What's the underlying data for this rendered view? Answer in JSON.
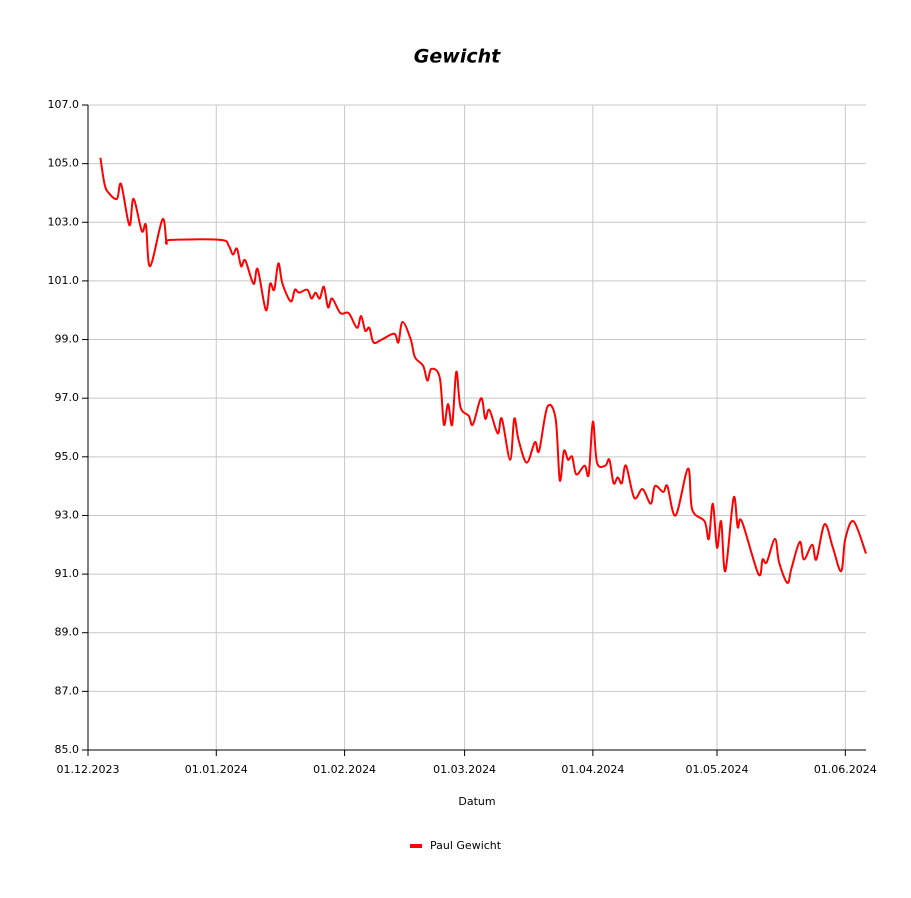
{
  "chart_data": {
    "type": "line",
    "title": "Gewicht",
    "x_label": "Datum",
    "x": [
      "2023-12-04",
      "2023-12-05",
      "2023-12-06",
      "2023-12-08",
      "2023-12-09",
      "2023-12-11",
      "2023-12-12",
      "2023-12-14",
      "2023-12-15",
      "2023-12-16",
      "2023-12-19",
      "2023-12-20",
      "2023-12-21",
      "2024-01-02",
      "2024-01-04",
      "2024-01-05",
      "2024-01-06",
      "2024-01-07",
      "2024-01-08",
      "2024-01-10",
      "2024-01-11",
      "2024-01-13",
      "2024-01-14",
      "2024-01-15",
      "2024-01-16",
      "2024-01-17",
      "2024-01-19",
      "2024-01-20",
      "2024-01-21",
      "2024-01-23",
      "2024-01-24",
      "2024-01-25",
      "2024-01-26",
      "2024-01-27",
      "2024-01-28",
      "2024-01-29",
      "2024-01-31",
      "2024-02-02",
      "2024-02-04",
      "2024-02-05",
      "2024-02-06",
      "2024-02-07",
      "2024-02-08",
      "2024-02-10",
      "2024-02-13",
      "2024-02-14",
      "2024-02-15",
      "2024-02-17",
      "2024-02-18",
      "2024-02-20",
      "2024-02-21",
      "2024-02-22",
      "2024-02-24",
      "2024-02-25",
      "2024-02-26",
      "2024-02-27",
      "2024-02-28",
      "2024-02-29",
      "2024-03-02",
      "2024-03-03",
      "2024-03-05",
      "2024-03-06",
      "2024-03-07",
      "2024-03-09",
      "2024-03-10",
      "2024-03-12",
      "2024-03-13",
      "2024-03-14",
      "2024-03-16",
      "2024-03-18",
      "2024-03-19",
      "2024-03-21",
      "2024-03-23",
      "2024-03-24",
      "2024-03-25",
      "2024-03-26",
      "2024-03-27",
      "2024-03-28",
      "2024-03-30",
      "2024-03-31",
      "2024-04-01",
      "2024-04-02",
      "2024-04-04",
      "2024-04-05",
      "2024-04-06",
      "2024-04-07",
      "2024-04-08",
      "2024-04-09",
      "2024-04-11",
      "2024-04-13",
      "2024-04-15",
      "2024-04-16",
      "2024-04-18",
      "2024-04-19",
      "2024-04-21",
      "2024-04-24",
      "2024-04-25",
      "2024-04-28",
      "2024-04-29",
      "2024-04-30",
      "2024-05-01",
      "2024-05-02",
      "2024-05-03",
      "2024-05-05",
      "2024-05-06",
      "2024-05-07",
      "2024-05-11",
      "2024-05-12",
      "2024-05-13",
      "2024-05-15",
      "2024-05-16",
      "2024-05-18",
      "2024-05-19",
      "2024-05-21",
      "2024-05-22",
      "2024-05-24",
      "2024-05-25",
      "2024-05-27",
      "2024-05-29",
      "2024-05-31",
      "2024-06-01",
      "2024-06-03",
      "2024-06-06"
    ],
    "series": [
      {
        "name": "Paul Gewicht",
        "color": "#ff0000",
        "values": [
          105.2,
          104.3,
          104.0,
          103.8,
          104.3,
          102.9,
          103.8,
          102.7,
          102.9,
          101.5,
          103.1,
          102.3,
          102.4,
          102.4,
          102.2,
          101.9,
          102.1,
          101.5,
          101.7,
          100.9,
          101.4,
          100.0,
          100.9,
          100.7,
          101.6,
          100.9,
          100.3,
          100.7,
          100.6,
          100.7,
          100.4,
          100.6,
          100.4,
          100.8,
          100.1,
          100.4,
          99.9,
          99.9,
          99.4,
          99.8,
          99.3,
          99.4,
          98.9,
          99.0,
          99.2,
          98.9,
          99.6,
          99.0,
          98.4,
          98.1,
          97.6,
          98.0,
          97.7,
          96.1,
          96.8,
          96.1,
          97.9,
          96.7,
          96.4,
          96.1,
          97.0,
          96.3,
          96.6,
          95.8,
          96.3,
          94.9,
          96.3,
          95.6,
          94.8,
          95.5,
          95.2,
          96.7,
          96.3,
          94.2,
          95.2,
          94.9,
          95.0,
          94.4,
          94.7,
          94.4,
          96.2,
          94.8,
          94.7,
          94.9,
          94.1,
          94.3,
          94.1,
          94.7,
          93.6,
          93.9,
          93.4,
          94.0,
          93.8,
          94.0,
          93.0,
          94.6,
          93.2,
          92.8,
          92.2,
          93.4,
          91.9,
          92.8,
          91.1,
          93.6,
          92.6,
          92.8,
          91.0,
          91.5,
          91.4,
          92.2,
          91.4,
          90.7,
          91.2,
          92.1,
          91.5,
          92.0,
          91.5,
          92.7,
          91.9,
          91.1,
          92.2,
          92.8,
          91.7
        ]
      }
    ],
    "xlim": [
      "2023-12-01",
      "2024-06-06"
    ],
    "xticks": [
      {
        "value": "2023-12-01",
        "label": "01.12.2023"
      },
      {
        "value": "2024-01-01",
        "label": "01.01.2024"
      },
      {
        "value": "2024-02-01",
        "label": "01.02.2024"
      },
      {
        "value": "2024-03-01",
        "label": "01.03.2024"
      },
      {
        "value": "2024-04-01",
        "label": "01.04.2024"
      },
      {
        "value": "2024-05-01",
        "label": "01.05.2024"
      },
      {
        "value": "2024-06-01",
        "label": "01.06.2024"
      }
    ],
    "ylim": [
      85,
      107
    ],
    "yticks": [
      {
        "value": 85,
        "label": "85.0"
      },
      {
        "value": 87,
        "label": "87.0"
      },
      {
        "value": 89,
        "label": "89.0"
      },
      {
        "value": 91,
        "label": "91.0"
      },
      {
        "value": 93,
        "label": "93.0"
      },
      {
        "value": 95,
        "label": "95.0"
      },
      {
        "value": 97,
        "label": "97.0"
      },
      {
        "value": 99,
        "label": "99.0"
      },
      {
        "value": 101,
        "label": "101.0"
      },
      {
        "value": 103,
        "label": "103.0"
      },
      {
        "value": 105,
        "label": "105.0"
      },
      {
        "value": 107,
        "label": "107.0"
      }
    ],
    "grid": true,
    "legend": "bottom"
  }
}
